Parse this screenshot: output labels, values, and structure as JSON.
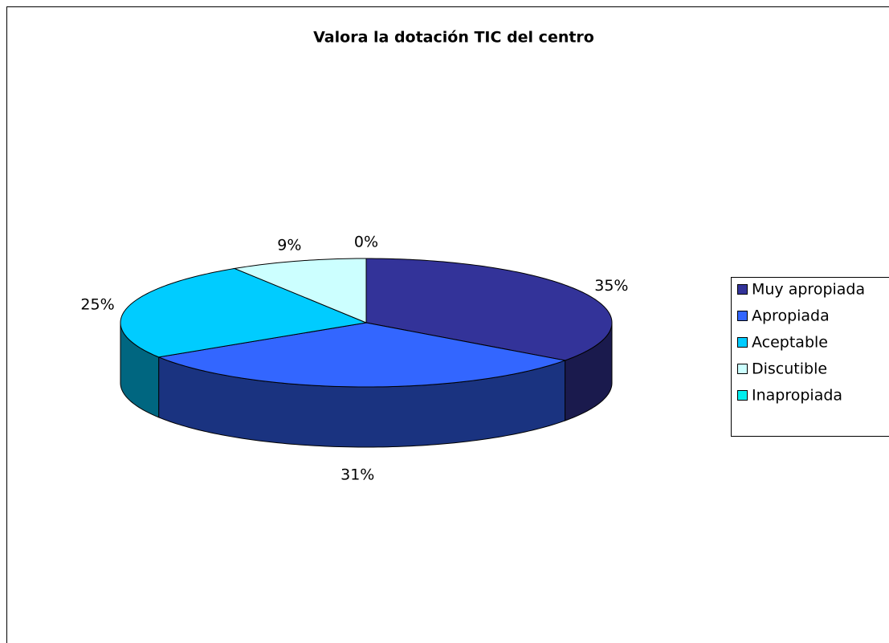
{
  "chart_data": {
    "type": "pie3d",
    "title": "Valora la dotación TIC del centro",
    "categories": [
      "Muy apropiada",
      "Apropiada",
      "Aceptable",
      "Discutible",
      "Inapropiada"
    ],
    "values": [
      35,
      31,
      25,
      9,
      0
    ],
    "value_labels": [
      "35%",
      "31%",
      "25%",
      "9%",
      "0%"
    ],
    "colors": [
      "#333399",
      "#3366ff",
      "#00ccff",
      "#ccffff",
      "#00eeee"
    ],
    "legend": "right"
  }
}
